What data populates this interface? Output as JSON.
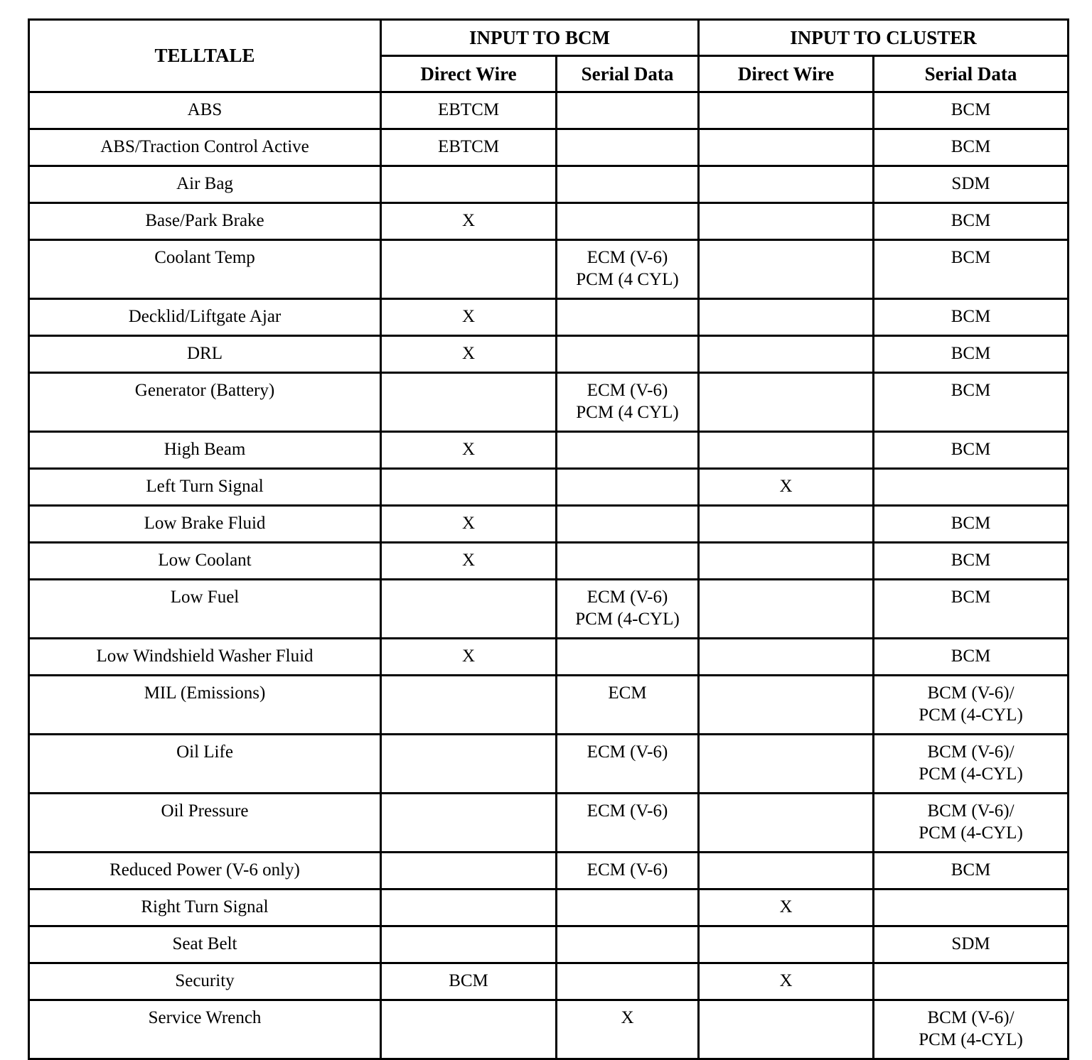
{
  "table": {
    "header": {
      "telltale": "TELLTALE",
      "input_bcm": "INPUT TO BCM",
      "input_cluster": "INPUT TO CLUSTER",
      "direct_wire": "Direct Wire",
      "serial_data": "Serial Data"
    },
    "rows": [
      {
        "cells": [
          "ABS",
          "EBTCM",
          "",
          "",
          "BCM"
        ]
      },
      {
        "cells": [
          "ABS/Traction Control Active",
          "EBTCM",
          "",
          "",
          "BCM"
        ]
      },
      {
        "cells": [
          "Air Bag",
          "",
          "",
          "",
          "SDM"
        ]
      },
      {
        "cells": [
          "Base/Park Brake",
          "X",
          "",
          "",
          "BCM"
        ]
      },
      {
        "cells": [
          "Coolant Temp",
          "",
          "ECM (V-6)\nPCM (4 CYL)",
          "",
          "BCM"
        ]
      },
      {
        "cells": [
          "Decklid/Liftgate Ajar",
          "X",
          "",
          "",
          "BCM"
        ]
      },
      {
        "cells": [
          "DRL",
          "X",
          "",
          "",
          "BCM"
        ]
      },
      {
        "cells": [
          "Generator (Battery)",
          "",
          "ECM (V-6)\nPCM (4 CYL)",
          "",
          "BCM"
        ]
      },
      {
        "cells": [
          "High Beam",
          "X",
          "",
          "",
          "BCM"
        ]
      },
      {
        "cells": [
          "Left Turn Signal",
          "",
          "",
          "X",
          ""
        ]
      },
      {
        "cells": [
          "Low Brake Fluid",
          "X",
          "",
          "",
          "BCM"
        ]
      },
      {
        "cells": [
          "Low Coolant",
          "X",
          "",
          "",
          "BCM"
        ]
      },
      {
        "cells": [
          "Low Fuel",
          "",
          "ECM (V-6)\nPCM (4-CYL)",
          "",
          "BCM"
        ]
      },
      {
        "cells": [
          "Low Windshield Washer Fluid",
          "X",
          "",
          "",
          "BCM"
        ]
      },
      {
        "cells": [
          "MIL (Emissions)",
          "",
          "ECM",
          "",
          "BCM (V-6)/\nPCM (4-CYL)"
        ]
      },
      {
        "cells": [
          "Oil Life",
          "",
          "ECM (V-6)",
          "",
          "BCM (V-6)/\nPCM (4-CYL)"
        ]
      },
      {
        "cells": [
          "Oil Pressure",
          "",
          "ECM (V-6)",
          "",
          "BCM (V-6)/\nPCM (4-CYL)"
        ]
      },
      {
        "cells": [
          "Reduced Power (V-6 only)",
          "",
          "ECM (V-6)",
          "",
          "BCM"
        ]
      },
      {
        "cells": [
          "Right Turn Signal",
          "",
          "",
          "X",
          ""
        ]
      },
      {
        "cells": [
          "Seat Belt",
          "",
          "",
          "",
          "SDM"
        ]
      },
      {
        "cells": [
          "Security",
          "BCM",
          "",
          "X",
          ""
        ]
      },
      {
        "cells": [
          "Service Wrench",
          "",
          "X",
          "",
          "BCM (V-6)/\nPCM (4-CYL)"
        ]
      }
    ]
  }
}
